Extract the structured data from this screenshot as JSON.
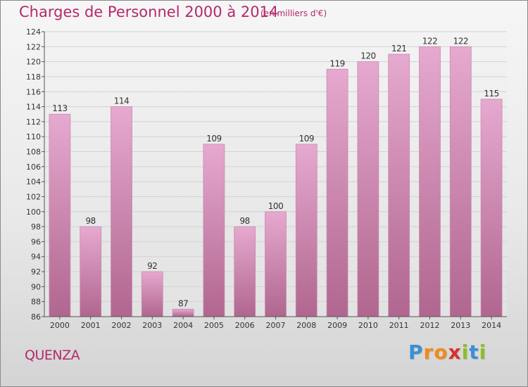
{
  "title": "Charges de Personnel 2000 à 2014",
  "subtitle": "(en milliers d'€)",
  "commune": "QUENZA",
  "logo": {
    "letters": [
      "P",
      "r",
      "o",
      "x",
      "i",
      "t",
      "i"
    ],
    "colors": [
      "#3b8fd4",
      "#f08a1c",
      "#f08a1c",
      "#d6322c",
      "#8cbf26",
      "#3b8fd4",
      "#8cbf26"
    ]
  },
  "colors": {
    "accent": "#b5286d",
    "bar_top": "#e6a9cf",
    "bar_bottom": "#b0668f"
  },
  "chart_data": {
    "type": "bar",
    "title": "Charges de Personnel 2000 à 2014",
    "categories": [
      "2000",
      "2001",
      "2002",
      "2003",
      "2004",
      "2005",
      "2006",
      "2007",
      "2008",
      "2009",
      "2010",
      "2011",
      "2012",
      "2013",
      "2014"
    ],
    "values": [
      113,
      98,
      114,
      92,
      87,
      109,
      98,
      100,
      109,
      119,
      120,
      121,
      122,
      122,
      115
    ],
    "ylim": [
      86,
      124
    ],
    "yticks": [
      86,
      88,
      90,
      92,
      94,
      96,
      98,
      100,
      102,
      104,
      106,
      108,
      110,
      112,
      114,
      116,
      118,
      120,
      122,
      124
    ],
    "grid": true,
    "data_labels": true
  }
}
